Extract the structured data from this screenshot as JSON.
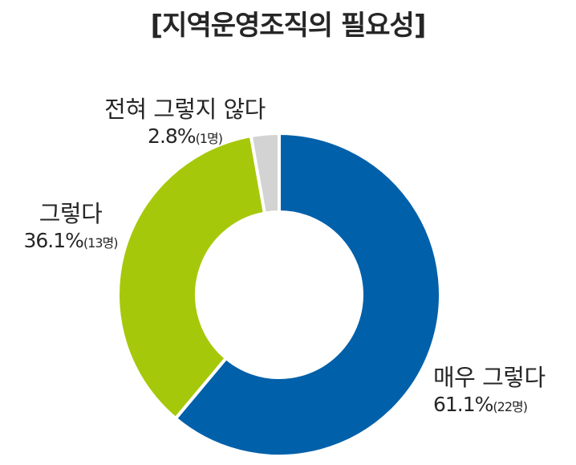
{
  "chart_data": {
    "type": "pie",
    "title": "[지역운영조직의 필요성]",
    "legend": "none",
    "slices": [
      {
        "label": "매우 그렇다",
        "value": 61.1,
        "percent_label": "61.1%",
        "count_label": "(22명)",
        "color": "#0060AA"
      },
      {
        "label": "그렇다",
        "value": 36.1,
        "percent_label": "36.1%",
        "count_label": "(13명)",
        "color": "#A6C80A"
      },
      {
        "label": "전혀 그렇지 않다",
        "value": 2.8,
        "percent_label": "2.8%",
        "count_label": "(1명)",
        "color": "#D3D3D3"
      }
    ]
  }
}
